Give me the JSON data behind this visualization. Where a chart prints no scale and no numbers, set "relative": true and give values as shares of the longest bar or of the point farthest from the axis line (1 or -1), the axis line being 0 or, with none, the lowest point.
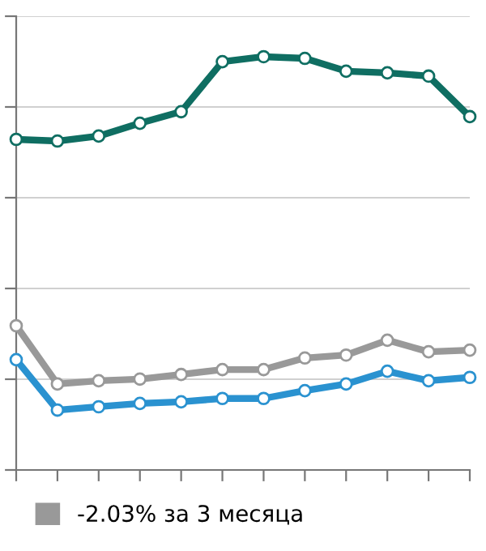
{
  "chart_data": {
    "type": "line",
    "relative": true,
    "categories": [
      null,
      null,
      null,
      null,
      null,
      null,
      null,
      null,
      null,
      null,
      null,
      null
    ],
    "series": [
      {
        "color": "#0f6e62",
        "values": [
          0.8,
          0.796,
          0.808,
          0.839,
          0.867,
          0.988,
          1.0,
          0.996,
          0.965,
          0.961,
          0.953,
          0.855
        ]
      },
      {
        "name": "-2.03% за 3 месяца",
        "color": "#999999",
        "values": [
          0.349,
          0.208,
          0.216,
          0.22,
          0.231,
          0.243,
          0.243,
          0.271,
          0.278,
          0.314,
          0.286,
          0.29
        ]
      },
      {
        "color": "#2a92d0",
        "values": [
          0.267,
          0.145,
          0.153,
          0.161,
          0.165,
          0.173,
          0.173,
          0.192,
          0.208,
          0.239,
          0.216,
          0.224
        ]
      }
    ],
    "marker": "circle",
    "line_style": "solid",
    "grid": "y",
    "legend": "bottom left"
  }
}
